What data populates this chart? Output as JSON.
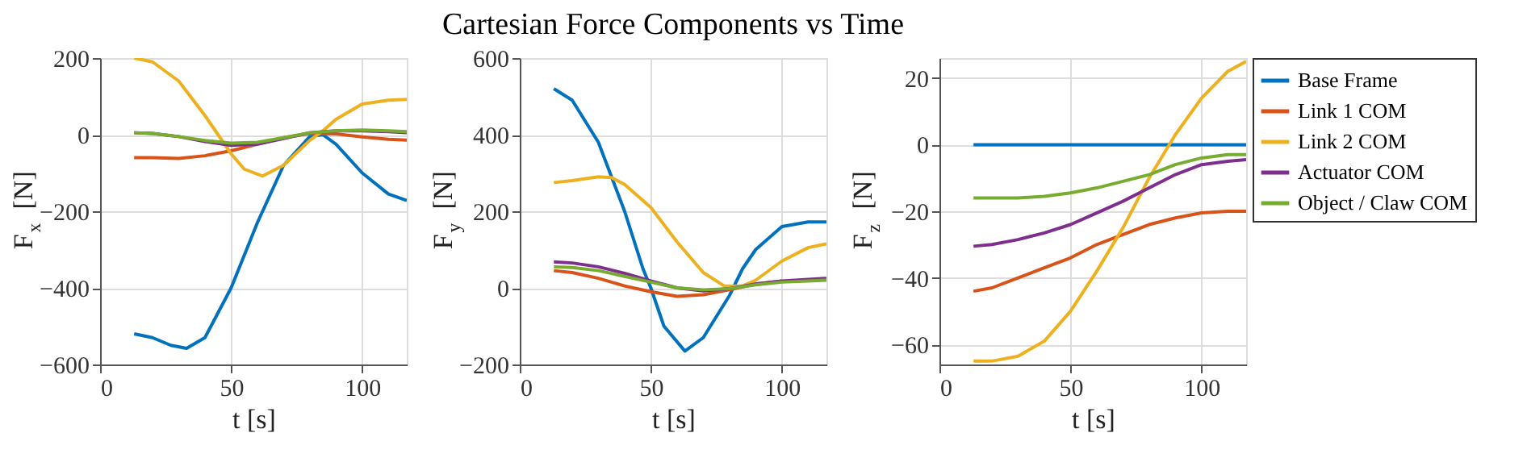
{
  "chart_data": [
    {
      "type": "line",
      "xlabel": "t [s]",
      "ylabel": "F$_{x}$ [N]",
      "xlim": [
        0,
        117
      ],
      "xticks": [
        0,
        50,
        100
      ],
      "ylim": [
        -600,
        200
      ],
      "yticks": [
        -600,
        -400,
        -200,
        0,
        200
      ],
      "grid": true,
      "line_style": "solid",
      "marker": "none",
      "series": [
        {
          "color": "#0072bd",
          "x": [
            13,
            20,
            27,
            33,
            40,
            50,
            60,
            70,
            80,
            85,
            90,
            100,
            110,
            117
          ],
          "values": [
            -520,
            -530,
            -550,
            -558,
            -530,
            -400,
            -230,
            -80,
            -5,
            0,
            -25,
            -100,
            -155,
            -172
          ]
        },
        {
          "color": "#d95319",
          "x": [
            13,
            20,
            30,
            40,
            50,
            60,
            70,
            80,
            90,
            100,
            110,
            117
          ],
          "values": [
            -60,
            -60,
            -62,
            -55,
            -42,
            -25,
            -8,
            3,
            2,
            -6,
            -12,
            -14
          ]
        },
        {
          "color": "#edb120",
          "x": [
            13,
            20,
            30,
            40,
            50,
            55,
            62,
            70,
            80,
            85,
            90,
            100,
            110,
            117
          ],
          "values": [
            200,
            190,
            140,
            50,
            -50,
            -90,
            -108,
            -80,
            -15,
            10,
            40,
            80,
            90,
            92
          ]
        },
        {
          "color": "#7e2f8e",
          "x": [
            13,
            20,
            30,
            40,
            50,
            60,
            70,
            80,
            90,
            100,
            110,
            117
          ],
          "values": [
            5,
            3,
            -5,
            -18,
            -28,
            -25,
            -10,
            5,
            10,
            10,
            8,
            5
          ]
        },
        {
          "color": "#77ac30",
          "x": [
            13,
            20,
            30,
            40,
            50,
            60,
            70,
            80,
            90,
            100,
            110,
            117
          ],
          "values": [
            5,
            3,
            -5,
            -15,
            -22,
            -20,
            -8,
            5,
            10,
            12,
            10,
            8
          ]
        }
      ]
    },
    {
      "type": "line",
      "title": "Cartesian Force Components vs Time",
      "xlabel": "t [s]",
      "ylabel": "F$_{y}$ [N]",
      "xlim": [
        0,
        117
      ],
      "xticks": [
        0,
        50,
        100
      ],
      "ylim": [
        -200,
        600
      ],
      "yticks": [
        -200,
        0,
        200,
        400,
        600
      ],
      "grid": true,
      "line_style": "solid",
      "marker": "none",
      "series": [
        {
          "color": "#0072bd",
          "x": [
            13,
            20,
            30,
            40,
            47,
            50,
            55,
            63,
            70,
            80,
            85,
            90,
            100,
            110,
            117
          ],
          "values": [
            520,
            490,
            380,
            200,
            50,
            0,
            -100,
            -165,
            -130,
            -20,
            50,
            100,
            160,
            172,
            172
          ]
        },
        {
          "color": "#d95319",
          "x": [
            13,
            20,
            30,
            40,
            50,
            60,
            70,
            80,
            90,
            100
          ],
          "values": [
            45,
            40,
            25,
            5,
            -10,
            -22,
            -18,
            -5,
            10,
            18
          ]
        },
        {
          "color": "#edb120",
          "x": [
            13,
            20,
            30,
            35,
            40,
            50,
            60,
            70,
            78,
            85,
            90,
            100,
            110,
            117
          ],
          "values": [
            275,
            280,
            290,
            288,
            270,
            210,
            120,
            40,
            5,
            5,
            20,
            70,
            105,
            115
          ]
        },
        {
          "color": "#7e2f8e",
          "x": [
            13,
            20,
            30,
            40,
            50,
            60,
            70,
            80,
            90,
            100,
            110,
            117
          ],
          "values": [
            68,
            65,
            55,
            38,
            18,
            0,
            -8,
            -2,
            10,
            18,
            22,
            25
          ]
        },
        {
          "color": "#77ac30",
          "x": [
            13,
            20,
            30,
            40,
            50,
            60,
            70,
            80,
            90,
            100,
            110,
            117
          ],
          "values": [
            55,
            53,
            45,
            30,
            15,
            0,
            -5,
            -2,
            8,
            15,
            18,
            20
          ]
        }
      ]
    },
    {
      "type": "line",
      "xlabel": "t [s]",
      "ylabel": "F$_{z}$ [N]",
      "xlim": [
        0,
        117
      ],
      "xticks": [
        0,
        50,
        100
      ],
      "ylim": [
        -66,
        26
      ],
      "yticks": [
        -60,
        -40,
        -20,
        0,
        20
      ],
      "grid": true,
      "legend": "right",
      "line_style": "solid",
      "marker": "none",
      "series": [
        {
          "name": "Base Frame",
          "color": "#0072bd",
          "x": [
            13,
            117
          ],
          "values": [
            0,
            0
          ]
        },
        {
          "name": "Link 1 COM",
          "color": "#d95319",
          "x": [
            13,
            20,
            30,
            40,
            50,
            60,
            70,
            80,
            90,
            100,
            110,
            117
          ],
          "values": [
            -44,
            -43,
            -40,
            -37,
            -34,
            -30,
            -27,
            -24,
            -22,
            -20.5,
            -20,
            -20
          ]
        },
        {
          "name": "Link 2 COM",
          "color": "#edb120",
          "x": [
            13,
            20,
            30,
            40,
            50,
            60,
            70,
            80,
            90,
            100,
            110,
            117
          ],
          "values": [
            -65,
            -65,
            -63.5,
            -59,
            -50,
            -38,
            -25,
            -10,
            3,
            14,
            22,
            25
          ]
        },
        {
          "name": "Actuator COM",
          "color": "#7e2f8e",
          "x": [
            13,
            20,
            30,
            40,
            50,
            60,
            70,
            80,
            90,
            100,
            110,
            117
          ],
          "values": [
            -30.5,
            -30,
            -28.5,
            -26.5,
            -24,
            -20.5,
            -17,
            -13,
            -9,
            -6,
            -5,
            -4.5
          ]
        },
        {
          "name": "Object / Claw COM",
          "color": "#77ac30",
          "x": [
            13,
            20,
            30,
            40,
            50,
            60,
            70,
            80,
            90,
            100,
            110,
            117
          ],
          "values": [
            -16,
            -16,
            -16,
            -15.5,
            -14.5,
            -13,
            -11,
            -9,
            -6,
            -4,
            -3,
            -3
          ]
        }
      ]
    }
  ]
}
